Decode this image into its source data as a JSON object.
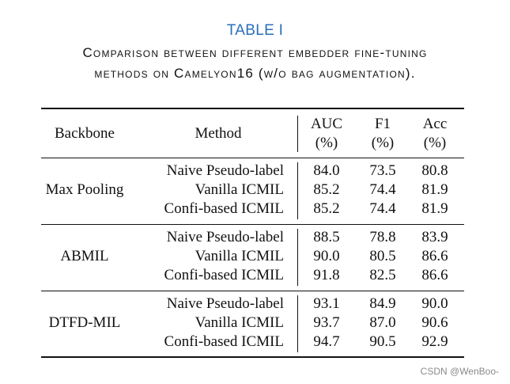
{
  "caption": {
    "label": "TABLE I",
    "line1": "Comparison between different embedder fine-tuning",
    "line2": "methods on Camelyon16 (w/o bag augmentation)."
  },
  "header": {
    "backbone": "Backbone",
    "method": "Method",
    "auc": "AUC",
    "f1": "F1",
    "acc": "Acc",
    "unit": "(%)"
  },
  "groups": [
    {
      "backbone": "Max Pooling",
      "rows": [
        {
          "method": "Naive Pseudo-label",
          "auc": "84.0",
          "f1": "73.5",
          "acc": "80.8"
        },
        {
          "method": "Vanilla ICMIL",
          "auc": "85.2",
          "f1": "74.4",
          "acc": "81.9"
        },
        {
          "method": "Confi-based ICMIL",
          "auc": "85.2",
          "f1": "74.4",
          "acc": "81.9"
        }
      ]
    },
    {
      "backbone": "ABMIL",
      "rows": [
        {
          "method": "Naive Pseudo-label",
          "auc": "88.5",
          "f1": "78.8",
          "acc": "83.9"
        },
        {
          "method": "Vanilla ICMIL",
          "auc": "90.0",
          "f1": "80.5",
          "acc": "86.6"
        },
        {
          "method": "Confi-based ICMIL",
          "auc": "91.8",
          "f1": "82.5",
          "acc": "86.6"
        }
      ]
    },
    {
      "backbone": "DTFD-MIL",
      "rows": [
        {
          "method": "Naive Pseudo-label",
          "auc": "93.1",
          "f1": "84.9",
          "acc": "90.0"
        },
        {
          "method": "Vanilla ICMIL",
          "auc": "93.7",
          "f1": "87.0",
          "acc": "90.6"
        },
        {
          "method": "Confi-based ICMIL",
          "auc": "94.7",
          "f1": "90.5",
          "acc": "92.9"
        }
      ]
    }
  ],
  "watermark": "CSDN @WenBoo-"
}
